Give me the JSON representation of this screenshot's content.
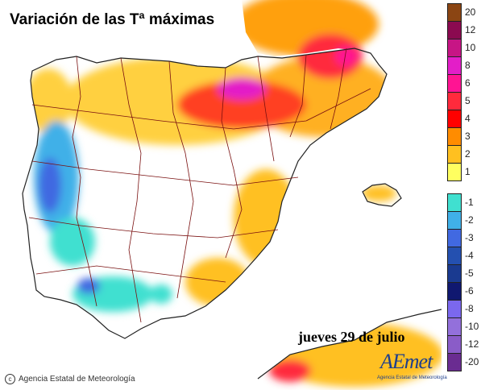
{
  "title": "Variación de las Tª máximas",
  "date_label": "jueves 29 de julio",
  "copyright_text": "Agencia Estatal de Meteorología",
  "logo": {
    "word": "AEmet",
    "subtitle": "Agencia Estatal de Meteorología"
  },
  "legend": [
    {
      "label": "20",
      "color": "#8b4513"
    },
    {
      "label": "12",
      "color": "#8b0a50"
    },
    {
      "label": "10",
      "color": "#c71585"
    },
    {
      "label": "8",
      "color": "#e31ec8"
    },
    {
      "label": "6",
      "color": "#ff1493"
    },
    {
      "label": "5",
      "color": "#ff2a3c"
    },
    {
      "label": "4",
      "color": "#ff0000"
    },
    {
      "label": "3",
      "color": "#ff8c00"
    },
    {
      "label": "2",
      "color": "#ffc020"
    },
    {
      "label": "1",
      "color": "#ffff60"
    },
    {
      "label": "-1",
      "color": "#40e0d0"
    },
    {
      "label": "-2",
      "color": "#40b0e8"
    },
    {
      "label": "-3",
      "color": "#4169e1"
    },
    {
      "label": "-4",
      "color": "#2450b0"
    },
    {
      "label": "-5",
      "color": "#1a3a90"
    },
    {
      "label": "-6",
      "color": "#101870"
    },
    {
      "label": "-8",
      "color": "#7b68ee"
    },
    {
      "label": "-10",
      "color": "#9370db"
    },
    {
      "label": "-12",
      "color": "#8a5cc8"
    },
    {
      "label": "-20",
      "color": "#6a2c91"
    }
  ],
  "map_colors": {
    "sea": "#ffffff",
    "land": "#ffffff",
    "border": "#7a1010",
    "coast": "#222222"
  }
}
